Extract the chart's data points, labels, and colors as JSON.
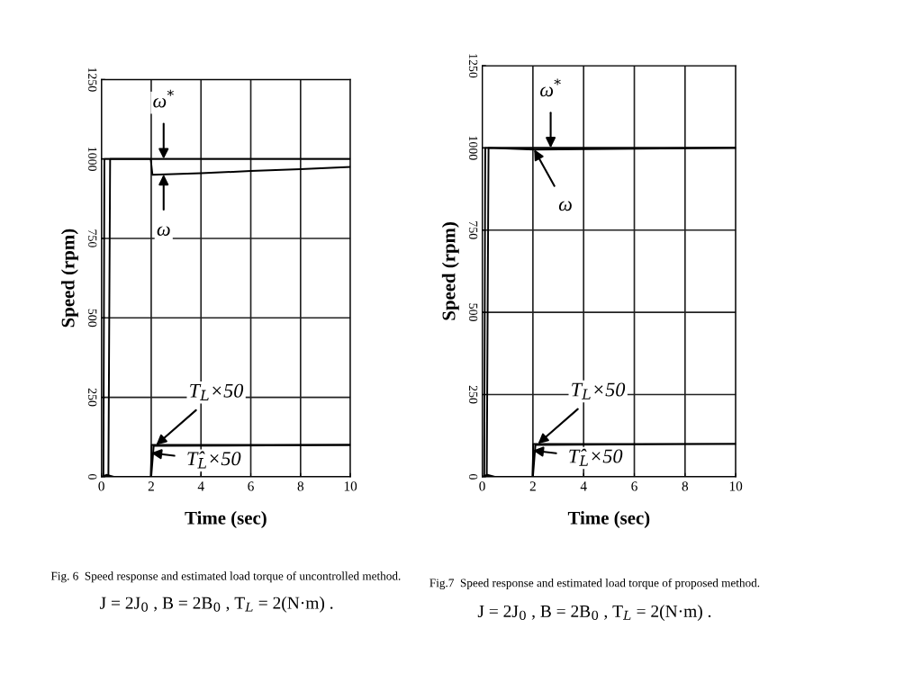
{
  "chart_data": [
    {
      "type": "line",
      "xlabel": "Time (sec)",
      "ylabel": "Speed (rpm)",
      "xlim": [
        0,
        10
      ],
      "ylim": [
        0,
        1250
      ],
      "xticks": [
        0,
        2,
        4,
        6,
        8,
        10
      ],
      "yticks": [
        0,
        250,
        500,
        750,
        1000,
        1250
      ],
      "grid": true,
      "line_style": "solid",
      "marker": "none",
      "series": [
        {
          "color": "#000000",
          "x": [
            0,
            0.08,
            0.12,
            2.5,
            10
          ],
          "values": [
            0,
            0,
            1000,
            1000,
            1000
          ]
        },
        {
          "color": "#000000",
          "x": [
            0,
            0.28,
            0.35,
            1.98,
            2.05,
            4,
            6,
            8,
            10
          ],
          "values": [
            0,
            0,
            1000,
            1000,
            950,
            955,
            962,
            968,
            975
          ]
        },
        {
          "color": "#000000",
          "x": [
            0,
            1.98,
            2.02,
            10
          ],
          "values": [
            0,
            0,
            100,
            100
          ]
        },
        {
          "color": "#000000",
          "x": [
            0,
            0.2,
            0.5,
            2,
            2.1,
            10
          ],
          "values": [
            0,
            6,
            0,
            0,
            97,
            100
          ]
        }
      ],
      "annotations": [
        {
          "text": "ω$^{*}$",
          "x": 2.5,
          "y": 1000
        },
        {
          "text": "ω",
          "x": 2.5,
          "y": 951
        },
        {
          "text": "T$_{L}$×50",
          "x": 2.2,
          "y": 100
        },
        {
          "text": "T̂$_{L}$×50",
          "x": 2.0,
          "y": 75
        },
        "Fig. 6  Speed response and estimated load torque of uncontrolled method.",
        "J = 2J$_{0}$ , B = 2B$_{0}$ , T$_{L}$ = 2(N·m) ."
      ]
    },
    {
      "type": "line",
      "xlabel": "Time (sec)",
      "ylabel": "Speed (rpm)",
      "xlim": [
        0,
        10
      ],
      "ylim": [
        0,
        1250
      ],
      "xticks": [
        0,
        2,
        4,
        6,
        8,
        10
      ],
      "yticks": [
        0,
        250,
        500,
        750,
        1000,
        1250
      ],
      "grid": true,
      "line_style": "solid",
      "marker": "none",
      "series": [
        {
          "color": "#000000",
          "x": [
            0,
            0.08,
            0.12,
            2.7,
            10
          ],
          "values": [
            0,
            0,
            1000,
            1000,
            1000
          ]
        },
        {
          "color": "#000000",
          "x": [
            0,
            0.18,
            0.25,
            2.05,
            10
          ],
          "values": [
            0,
            0,
            1000,
            995,
            1000
          ]
        },
        {
          "color": "#000000",
          "x": [
            0,
            1.98,
            2.02,
            10
          ],
          "values": [
            0,
            0,
            100,
            100
          ]
        },
        {
          "color": "#000000",
          "x": [
            0,
            0.2,
            0.5,
            2,
            2.1,
            10
          ],
          "values": [
            0,
            6,
            0,
            0,
            97,
            100
          ]
        }
      ],
      "annotations": [
        {
          "text": "ω$^{*}$",
          "x": 2.7,
          "y": 1000
        },
        {
          "text": "ω",
          "x": 2.05,
          "y": 995
        },
        {
          "text": "T$_{L}$×50",
          "x": 2.2,
          "y": 100
        },
        {
          "text": "T̂$_{L}$×50",
          "x": 2.0,
          "y": 80
        },
        "Fig.7  Speed response and estimated load torque of proposed method.",
        "J = 2J$_{0}$ , B = 2B$_{0}$ , T$_{L}$ = 2(N·m) ."
      ]
    }
  ]
}
